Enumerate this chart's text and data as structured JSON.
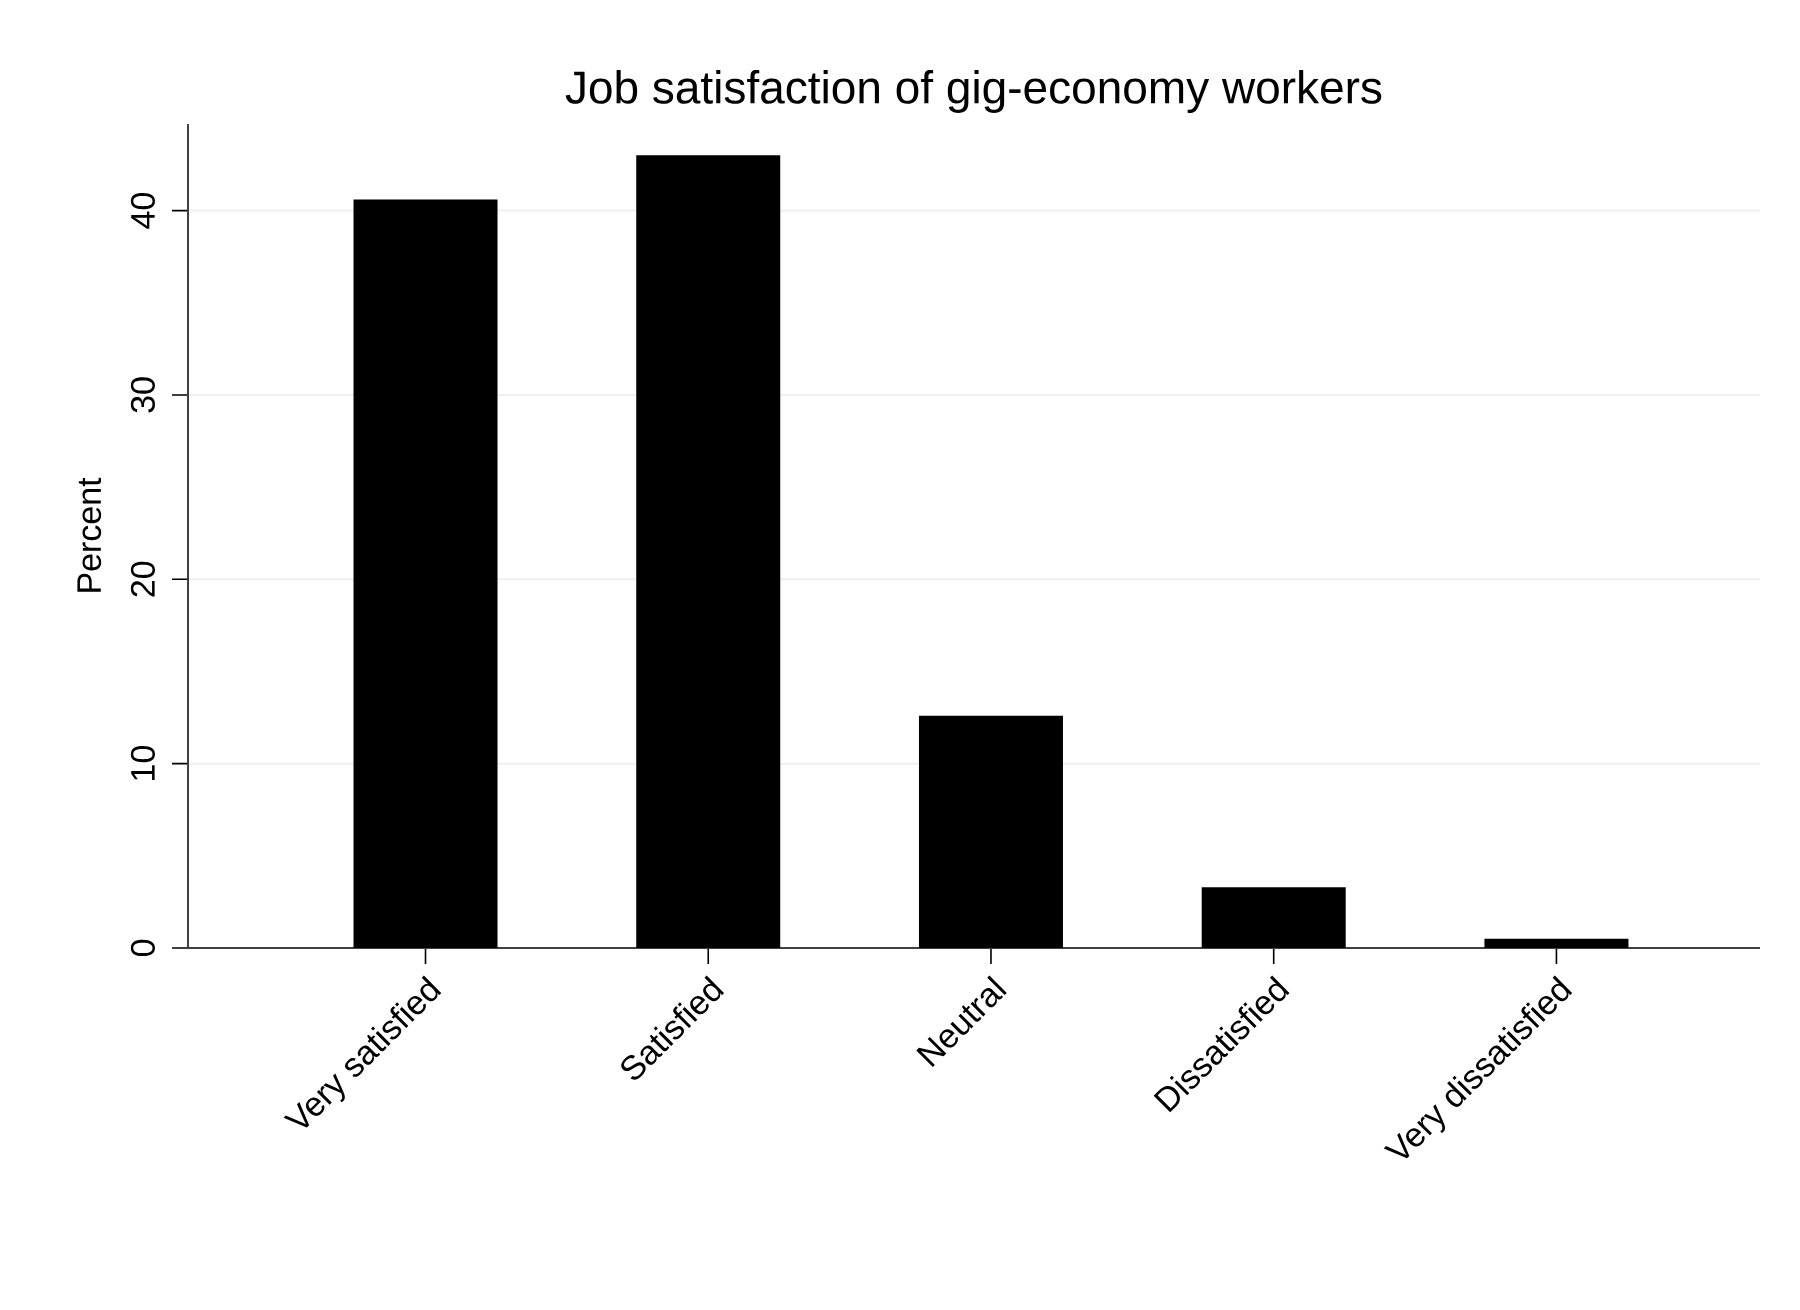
{
  "chart_data": {
    "type": "bar",
    "title": "Job satisfaction of gig-economy workers",
    "ylabel": "Percent",
    "categories": [
      "Very satisfied",
      "Satisfied",
      "Neutral",
      "Dissatisfied",
      "Very dissatisfied"
    ],
    "values": [
      40.6,
      43.0,
      12.6,
      3.3,
      0.5
    ],
    "color": "#000000",
    "ylim": [
      0,
      44.7
    ],
    "yticks": [
      0,
      10,
      20,
      30,
      40
    ],
    "grid": "y"
  }
}
